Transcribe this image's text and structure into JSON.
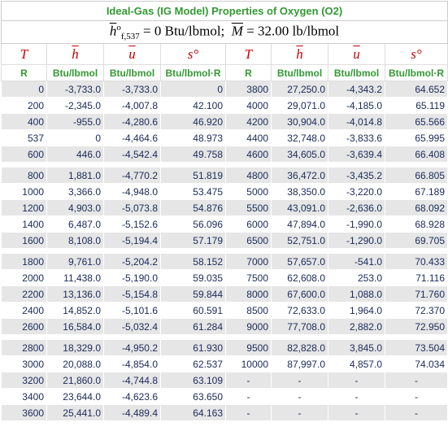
{
  "header": {
    "title": "Ideal-Gas (IG Model) Properties of Oxygen (O2)",
    "subtitle": {
      "h_symbol": "h",
      "h_sup": "o",
      "h_sub": "f,537",
      "h_value": "= 0 Btu/lbmol;",
      "m_symbol": "M",
      "m_value": "= 32.00 lb/lbmol"
    }
  },
  "table": {
    "symbols": [
      "T",
      "h",
      "u",
      "s°",
      "T",
      "h",
      "u",
      "s°"
    ],
    "units": [
      "R",
      "Btu/lbmol",
      "Btu/lbmol",
      "Btu/lbmol·R",
      "R",
      "Btu/lbmol",
      "Btu/lbmol",
      "Btu/lbmol·R"
    ],
    "groups": [
      [
        [
          "0",
          "-3,733.0",
          "-3,733.0",
          "0",
          "3800",
          "27,250.0",
          "-4,343.2",
          "64.652"
        ],
        [
          "200",
          "-2,345.0",
          "-4,007.8",
          "42.100",
          "4000",
          "29,071.0",
          "-4,185.0",
          "65.119"
        ],
        [
          "400",
          "-955.0",
          "-4,280.6",
          "46.920",
          "4200",
          "30,904.0",
          "-4,014.8",
          "65.566"
        ],
        [
          "537",
          "0",
          "-4,464.6",
          "48.973",
          "4400",
          "32,748.0",
          "-3,833.6",
          "65.995"
        ],
        [
          "600",
          "446.0",
          "-4,542.4",
          "49.758",
          "4600",
          "34,605.0",
          "-3,639.4",
          "66.408"
        ]
      ],
      [
        [
          "800",
          "1,881.0",
          "-4,770.2",
          "51.819",
          "4800",
          "36,472.0",
          "-3,435.2",
          "66.805"
        ],
        [
          "1000",
          "3,366.0",
          "-4,948.0",
          "53.475",
          "5000",
          "38,350.0",
          "-3,220.0",
          "67.189"
        ],
        [
          "1200",
          "4,903.0",
          "-5,073.8",
          "54.876",
          "5500",
          "43,091.0",
          "-2,636.0",
          "68.092"
        ],
        [
          "1400",
          "6,487.0",
          "-5,152.6",
          "56.096",
          "6000",
          "47,894.0",
          "-1,990.0",
          "68.928"
        ],
        [
          "1600",
          "8,108.0",
          "-5,194.4",
          "57.179",
          "6500",
          "52,751.0",
          "-1,290.0",
          "69.705"
        ]
      ],
      [
        [
          "1800",
          "9,761.0",
          "-5,204.2",
          "58.152",
          "7000",
          "57,657.0",
          "-541.0",
          "70.433"
        ],
        [
          "2000",
          "11,438.0",
          "-5,190.0",
          "59.035",
          "7500",
          "62,608.0",
          "253.0",
          "71.116"
        ],
        [
          "2200",
          "13,136.0",
          "-5,154.8",
          "59.844",
          "8000",
          "67,600.0",
          "1,088.0",
          "71.760"
        ],
        [
          "2400",
          "14,852.0",
          "-5,101.6",
          "60.591",
          "8500",
          "72,633.0",
          "1,964.0",
          "72.370"
        ],
        [
          "2600",
          "16,584.0",
          "-5,032.4",
          "61.284",
          "9000",
          "77,708.0",
          "2,882.0",
          "72.950"
        ]
      ],
      [
        [
          "2800",
          "18,329.0",
          "-4,950.2",
          "61.930",
          "9500",
          "82,828.0",
          "3,845.0",
          "73.504"
        ],
        [
          "3000",
          "20,088.0",
          "-4,854.0",
          "62.537",
          "10000",
          "87,997.0",
          "4,857.0",
          "74.034"
        ],
        [
          "3200",
          "21,860.0",
          "-4,744.8",
          "63.109",
          "-",
          "-",
          "-",
          "-"
        ],
        [
          "3400",
          "23,644.0",
          "-4,623.6",
          "63.650",
          "-",
          "-",
          "-",
          "-"
        ],
        [
          "3600",
          "25,441.0",
          "-4,489.4",
          "64.163",
          "-",
          "-",
          "-",
          "-"
        ]
      ]
    ]
  }
}
